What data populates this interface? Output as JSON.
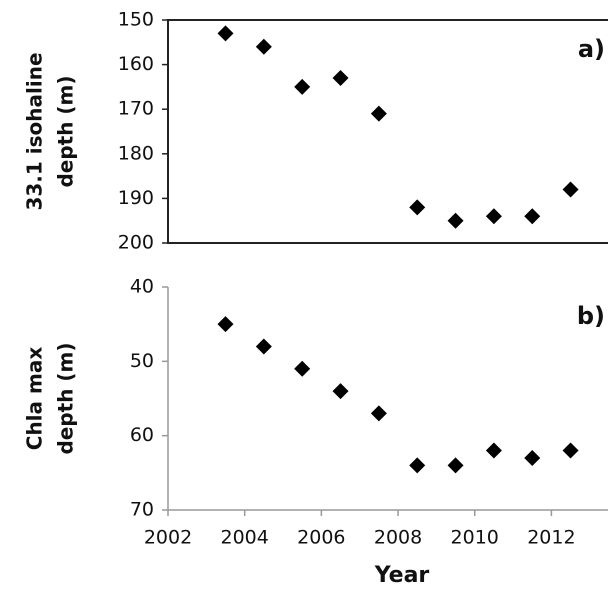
{
  "chart_data": [
    {
      "type": "scatter",
      "annotation": "a)",
      "ylabel": [
        "33.1 isohaline",
        "depth (m)"
      ],
      "x": [
        2003.5,
        2004.5,
        2005.5,
        2006.5,
        2007.5,
        2008.5,
        2009.5,
        2010.5,
        2011.5,
        2012.5
      ],
      "values": [
        153,
        156,
        165,
        163,
        171,
        192,
        195,
        194,
        194,
        188
      ],
      "color": "#000000",
      "xlim": [
        2002,
        2013.45
      ],
      "ylim": [
        150,
        200
      ],
      "invert_y": true,
      "yticks": [
        150,
        160,
        170,
        180,
        190,
        200
      ],
      "frame": true
    },
    {
      "type": "scatter",
      "annotation": "b)",
      "ylabel": [
        "Chla max",
        "depth (m)"
      ],
      "xlabel": "Year",
      "x": [
        2003.5,
        2004.5,
        2005.5,
        2006.5,
        2007.5,
        2008.5,
        2009.5,
        2010.5,
        2011.5,
        2012.5
      ],
      "values": [
        45,
        48,
        51,
        54,
        57,
        64,
        64,
        62,
        63,
        62
      ],
      "color": "#000000",
      "xlim": [
        2002,
        2013.45
      ],
      "ylim": [
        40,
        70
      ],
      "invert_y": true,
      "yticks": [
        40,
        50,
        60,
        70
      ],
      "xticks": [
        2002,
        2004,
        2006,
        2008,
        2010,
        2012
      ],
      "frame": false
    }
  ]
}
